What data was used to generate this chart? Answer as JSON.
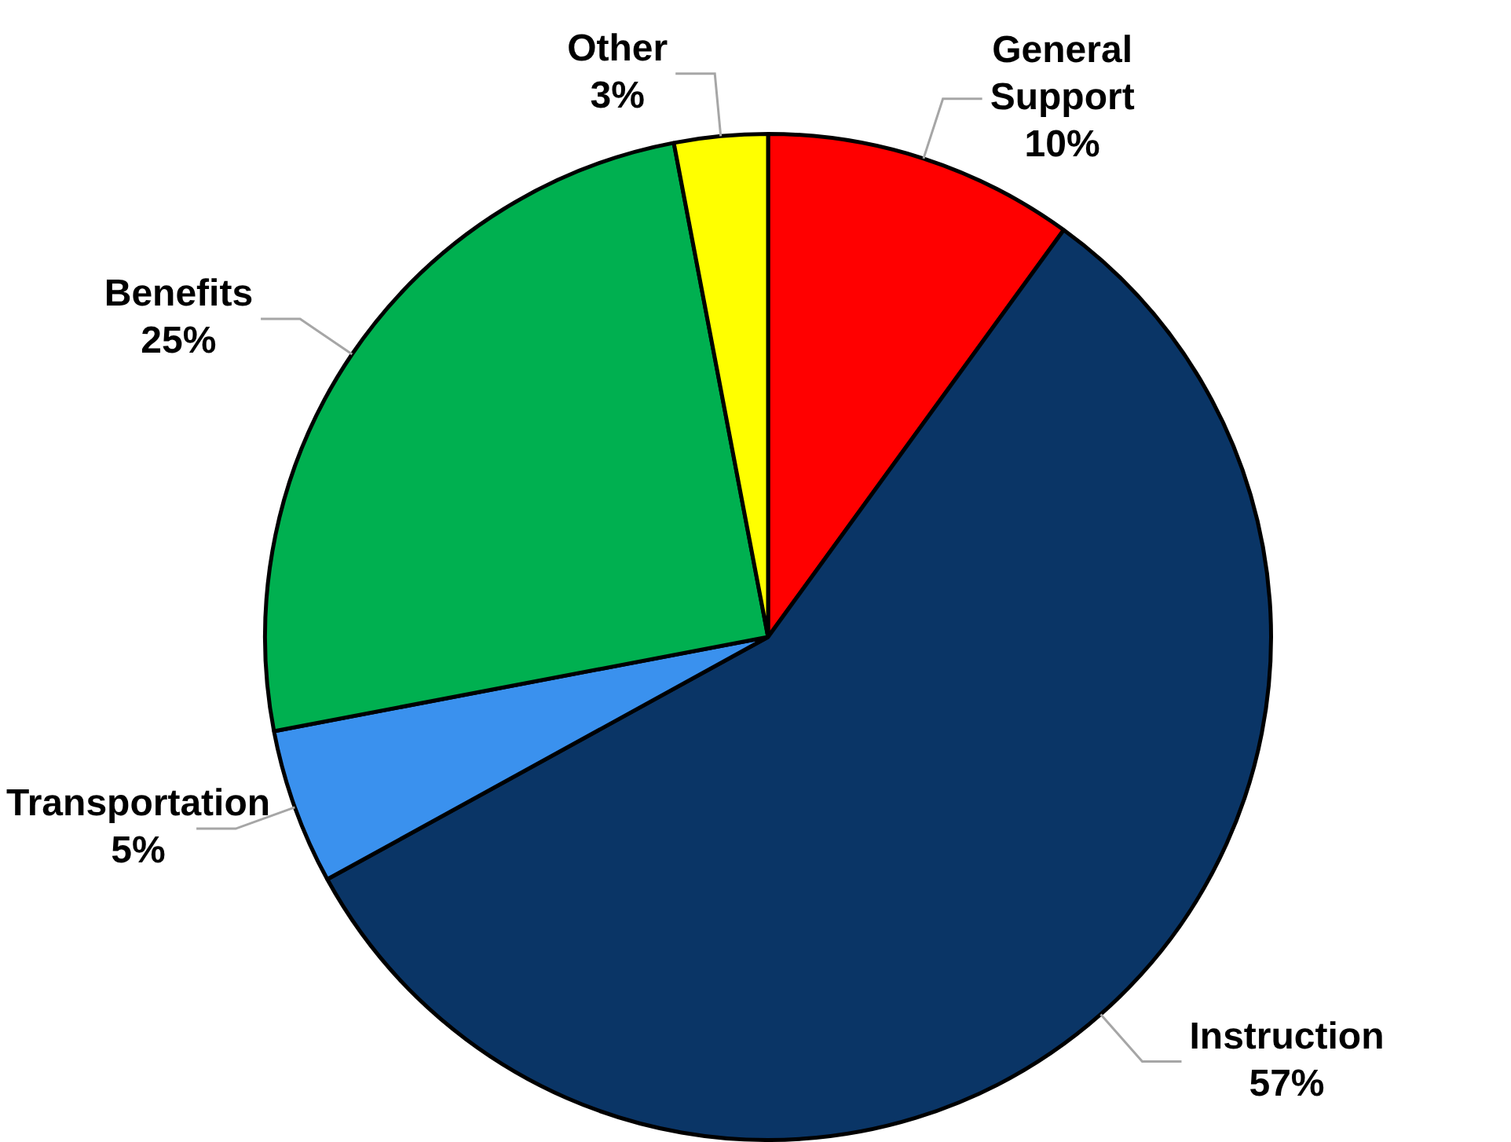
{
  "chart_data": {
    "type": "pie",
    "categories": [
      "General Support",
      "Instruction",
      "Transportation",
      "Benefits",
      "Other"
    ],
    "values": [
      10,
      57,
      5,
      25,
      3
    ],
    "colors": [
      "#ff0000",
      "#0a3566",
      "#3a91ee",
      "#00b050",
      "#ffff00"
    ],
    "value_labels": [
      "10%",
      "57%",
      "5%",
      "25%",
      "3%"
    ],
    "legend": false
  }
}
